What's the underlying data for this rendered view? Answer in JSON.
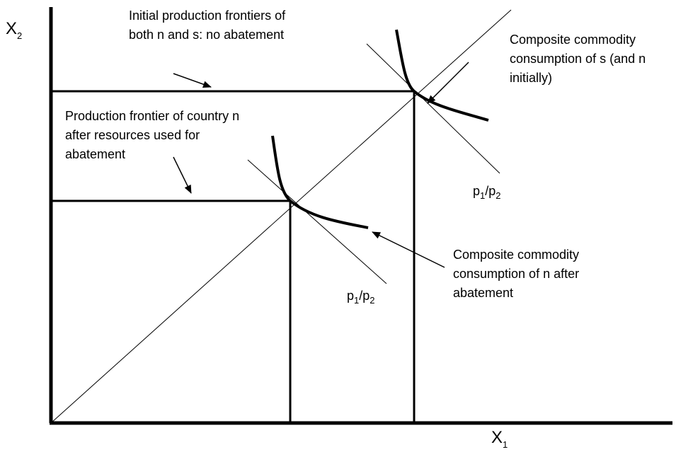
{
  "axes": {
    "y_label": {
      "base": "X",
      "sub": "2"
    },
    "x_label": {
      "base": "X",
      "sub": "1"
    }
  },
  "annotations": {
    "initial_frontiers": [
      "Initial production frontiers of",
      "both n and s: no abatement"
    ],
    "frontier_n": [
      "Production frontier of country n",
      "after resources used for",
      "abatement"
    ],
    "consumption_s": [
      "Composite commodity",
      "consumption of s (and n",
      "initially)"
    ],
    "consumption_n": [
      "Composite commodity",
      "consumption of n after",
      "abatement"
    ],
    "price_outer": {
      "base": "p",
      "sub1": "1",
      "slash": "/p",
      "sub2": "2"
    },
    "price_inner": {
      "base": "p",
      "sub1": "1",
      "slash": "/p",
      "sub2": "2"
    }
  }
}
